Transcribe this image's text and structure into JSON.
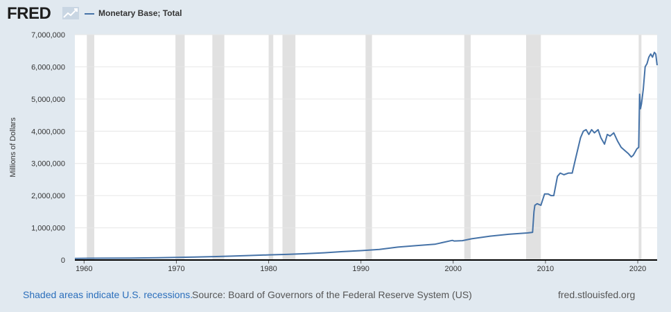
{
  "header": {
    "logo_text": "FRED",
    "logo_icon": "trend-chart-icon",
    "legend_label": "Monetary Base; Total"
  },
  "colors": {
    "background": "#e1e9f0",
    "plot_background": "#ffffff",
    "series": "#4572a7",
    "recession": "#e1e1e1",
    "link": "#2a6ebb"
  },
  "footer": {
    "note": "Shaded areas indicate U.S. recessions.",
    "source": "Source: Board of Governors of the Federal Reserve System (US)",
    "site": "fred.stlouisfed.org"
  },
  "chart_data": {
    "type": "line",
    "title": "",
    "xlabel": "",
    "ylabel": "Millions of Dollars",
    "xlim": [
      1959,
      2022.1
    ],
    "ylim": [
      0,
      7000000
    ],
    "grid": true,
    "legend_position": "top-left",
    "x_ticks": [
      1960,
      1970,
      1980,
      1990,
      2000,
      2010,
      2020
    ],
    "x_tick_labels": [
      "1960",
      "1970",
      "1980",
      "1990",
      "2000",
      "2010",
      "2020"
    ],
    "y_ticks": [
      0,
      1000000,
      2000000,
      3000000,
      4000000,
      5000000,
      6000000,
      7000000
    ],
    "y_tick_labels": [
      "0",
      "1,000,000",
      "2,000,000",
      "3,000,000",
      "4,000,000",
      "5,000,000",
      "6,000,000",
      "7,000,000"
    ],
    "recessions": [
      [
        1960.3,
        1961.1
      ],
      [
        1969.9,
        1970.9
      ],
      [
        1973.9,
        1975.2
      ],
      [
        1980.0,
        1980.5
      ],
      [
        1981.5,
        1982.9
      ],
      [
        1990.5,
        1991.2
      ],
      [
        2001.2,
        2001.9
      ],
      [
        2007.9,
        2009.5
      ],
      [
        2020.1,
        2020.4
      ]
    ],
    "series": [
      {
        "name": "Monetary Base; Total",
        "x": [
          1959,
          1962,
          1965,
          1968,
          1970,
          1972,
          1974,
          1976,
          1978,
          1980,
          1982,
          1984,
          1986,
          1988,
          1990,
          1992,
          1994,
          1996,
          1998,
          1999.9,
          2000.1,
          2001,
          2002,
          2004,
          2006,
          2008.0,
          2008.6,
          2008.75,
          2008.85,
          2009.1,
          2009.5,
          2009.9,
          2010.3,
          2010.6,
          2010.9,
          2011.3,
          2011.6,
          2012.0,
          2012.5,
          2012.9,
          2013.3,
          2013.8,
          2014.1,
          2014.4,
          2014.7,
          2015.0,
          2015.3,
          2015.7,
          2016.0,
          2016.4,
          2016.7,
          2017.0,
          2017.4,
          2017.8,
          2018.2,
          2018.6,
          2019.0,
          2019.3,
          2019.5,
          2019.7,
          2019.9,
          2020.1,
          2020.2,
          2020.3,
          2020.4,
          2020.6,
          2020.8,
          2021.0,
          2021.2,
          2021.4,
          2021.6,
          2021.8,
          2021.95,
          2022.1
        ],
        "values": [
          50000,
          55000,
          60000,
          70000,
          80000,
          90000,
          105000,
          120000,
          140000,
          160000,
          175000,
          195000,
          225000,
          260000,
          290000,
          330000,
          400000,
          445000,
          490000,
          610000,
          590000,
          600000,
          660000,
          740000,
          800000,
          840000,
          860000,
          1500000,
          1700000,
          1750000,
          1700000,
          2050000,
          2050000,
          2000000,
          2000000,
          2600000,
          2700000,
          2650000,
          2700000,
          2700000,
          3200000,
          3800000,
          4000000,
          4050000,
          3900000,
          4050000,
          3950000,
          4050000,
          3800000,
          3600000,
          3900000,
          3850000,
          3950000,
          3700000,
          3500000,
          3400000,
          3300000,
          3200000,
          3250000,
          3350000,
          3450000,
          3500000,
          5150000,
          4700000,
          4850000,
          5300000,
          6000000,
          6100000,
          6300000,
          6400000,
          6300000,
          6450000,
          6400000,
          6050000
        ]
      }
    ]
  }
}
